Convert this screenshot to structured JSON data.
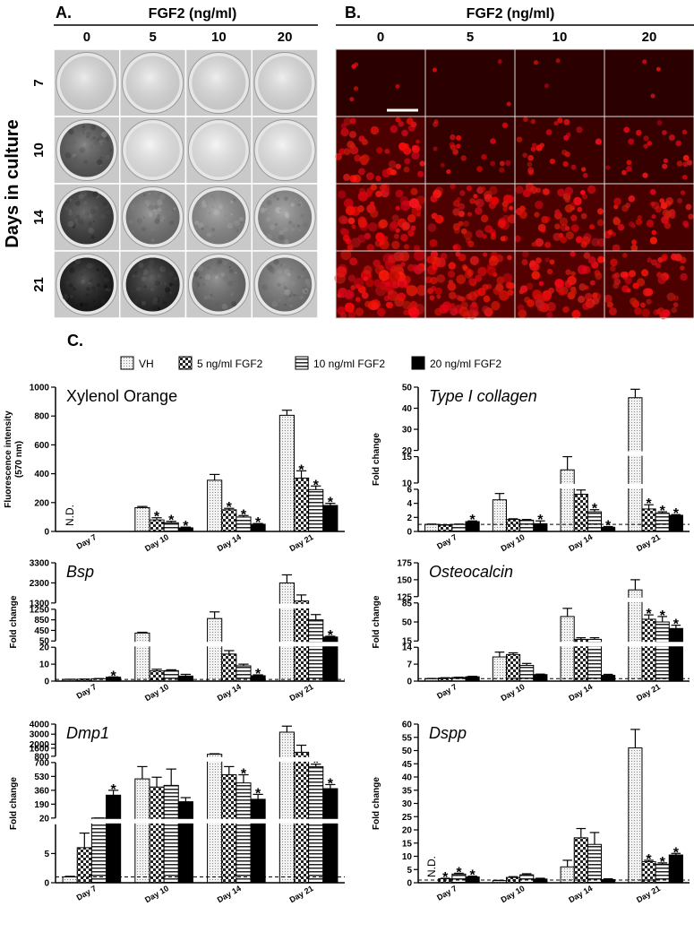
{
  "panel_a": {
    "label": "A.",
    "header": "FGF2 (ng/ml)",
    "columns": [
      "0",
      "5",
      "10",
      "20"
    ],
    "rows": [
      "7",
      "10",
      "14",
      "21"
    ],
    "row_title": "Days in culture"
  },
  "panel_b": {
    "label": "B.",
    "header": "FGF2 (ng/ml)",
    "columns": [
      "0",
      "5",
      "10",
      "20"
    ]
  },
  "panel_c": {
    "label": "C.",
    "legend": [
      {
        "name": "VH",
        "fill": "dots"
      },
      {
        "name": "5 ng/ml FGF2",
        "fill": "checker"
      },
      {
        "name": "10 ng/ml FGF2",
        "fill": "stripes"
      },
      {
        "name": "20 ng/ml FGF2",
        "fill": "solid"
      }
    ]
  },
  "chart_data": [
    {
      "type": "bar",
      "title": "Xylenol Orange",
      "ylabel": [
        "Fluorescence intensity",
        "(570 nm)"
      ],
      "categories": [
        "Day 7",
        "Day 10",
        "Day 14",
        "Day 21"
      ],
      "ylim": [
        0,
        1000
      ],
      "yticks": [
        0,
        200,
        400,
        600,
        800,
        1000
      ],
      "series": [
        {
          "values": [
            null,
            165,
            355,
            805
          ],
          "errors": [
            null,
            8,
            40,
            35
          ],
          "value_labels": [
            "N.D.",
            null,
            null,
            null
          ]
        },
        {
          "values": [
            null,
            80,
            150,
            370
          ],
          "errors": [
            null,
            15,
            10,
            50
          ],
          "significance": [
            null,
            "*",
            "*",
            "*"
          ]
        },
        {
          "values": [
            null,
            60,
            100,
            290
          ],
          "errors": [
            null,
            10,
            10,
            25
          ],
          "significance": [
            null,
            "*",
            "*",
            "*"
          ]
        },
        {
          "values": [
            null,
            25,
            50,
            180
          ],
          "errors": [
            null,
            5,
            5,
            15
          ],
          "significance": [
            null,
            "*",
            "*",
            "*"
          ]
        }
      ]
    },
    {
      "type": "bar",
      "title": "Type I collagen",
      "ylabel": "Fold change",
      "categories": [
        "Day 7",
        "Day 10",
        "Day 14",
        "Day 21"
      ],
      "reference_line": 1,
      "y_segments": [
        {
          "ylim": [
            0,
            6
          ],
          "yticks": [
            0,
            2,
            4,
            6
          ]
        },
        {
          "ylim": [
            10,
            15
          ],
          "yticks": [
            10,
            15
          ]
        },
        {
          "ylim": [
            20,
            50
          ],
          "yticks": [
            20,
            30,
            40,
            50
          ]
        }
      ],
      "series": [
        {
          "values": [
            1,
            4.5,
            12.5,
            45
          ],
          "errors": [
            0.05,
            0.9,
            2.5,
            4
          ]
        },
        {
          "values": [
            0.9,
            1.7,
            5.3,
            3.2
          ],
          "errors": [
            0.05,
            0.1,
            0.6,
            0.6
          ],
          "significance": [
            null,
            null,
            null,
            "*"
          ]
        },
        {
          "values": [
            1.0,
            1.6,
            2.8,
            2.6
          ],
          "errors": [
            0.05,
            0.1,
            0.3,
            0.2
          ],
          "significance": [
            null,
            null,
            "*",
            "*"
          ]
        },
        {
          "values": [
            1.4,
            1.1,
            0.6,
            2.3
          ],
          "errors": [
            0.1,
            0.4,
            0.1,
            0.1
          ],
          "significance": [
            "*",
            "*",
            "*",
            "*"
          ]
        }
      ]
    },
    {
      "type": "bar",
      "title": "Bsp",
      "ylabel": "Fold change",
      "categories": [
        "Day 7",
        "Day 10",
        "Day 14",
        "Day 21"
      ],
      "reference_line": 1,
      "y_segments": [
        {
          "ylim": [
            0,
            20
          ],
          "yticks": [
            0,
            10,
            20
          ]
        },
        {
          "ylim": [
            50,
            1250
          ],
          "yticks": [
            50,
            450,
            850,
            1250
          ]
        },
        {
          "ylim": [
            1300,
            3300
          ],
          "yticks": [
            1300,
            2300,
            3300
          ]
        }
      ],
      "series": [
        {
          "values": [
            1,
            350,
            900,
            2300
          ],
          "errors": [
            0.1,
            30,
            250,
            400
          ]
        },
        {
          "values": [
            1.1,
            6,
            16,
            1400
          ],
          "errors": [
            0.1,
            1,
            2,
            300
          ]
        },
        {
          "values": [
            1.4,
            6.2,
            9,
            850
          ],
          "errors": [
            0.1,
            0.5,
            1,
            200
          ]
        },
        {
          "values": [
            2.3,
            3,
            3.2,
            200
          ],
          "errors": [
            0.2,
            1,
            0.5,
            30
          ],
          "significance": [
            "*",
            null,
            "*",
            "*"
          ]
        }
      ]
    },
    {
      "type": "bar",
      "title": "Osteocalcin",
      "ylabel": "Fold change",
      "categories": [
        "Day 7",
        "Day 10",
        "Day 14",
        "Day 21"
      ],
      "reference_line": 1,
      "y_segments": [
        {
          "ylim": [
            0,
            14
          ],
          "yticks": [
            0,
            7,
            14
          ]
        },
        {
          "ylim": [
            15,
            85
          ],
          "yticks": [
            15,
            50,
            85
          ]
        },
        {
          "ylim": [
            125,
            175
          ],
          "yticks": [
            125,
            150,
            175
          ]
        }
      ],
      "series": [
        {
          "values": [
            1,
            10,
            60,
            135
          ],
          "errors": [
            0.1,
            2,
            15,
            15
          ]
        },
        {
          "values": [
            1.3,
            11,
            18,
            55
          ],
          "errors": [
            0.1,
            0.7,
            3,
            8
          ],
          "significance": [
            null,
            null,
            null,
            "*"
          ]
        },
        {
          "values": [
            1.5,
            6.5,
            18,
            50
          ],
          "errors": [
            0.1,
            0.8,
            3,
            10
          ],
          "significance": [
            null,
            null,
            null,
            "*"
          ]
        },
        {
          "values": [
            1.8,
            2.7,
            2.4,
            38
          ],
          "errors": [
            0.2,
            0.2,
            0.4,
            6
          ],
          "significance": [
            null,
            null,
            null,
            "*"
          ]
        }
      ]
    },
    {
      "type": "bar",
      "title": "Dmp1",
      "ylabel": "Fold change",
      "categories": [
        "Day 7",
        "Day 10",
        "Day 14",
        "Day 21"
      ],
      "reference_line": 1,
      "y_segments": [
        {
          "ylim": [
            0,
            10
          ],
          "yticks": [
            0,
            5
          ]
        },
        {
          "ylim": [
            20,
            700
          ],
          "yticks": [
            20,
            190,
            360,
            530,
            700
          ]
        },
        {
          "ylim": [
            800,
            4000
          ],
          "yticks": [
            800,
            1600,
            2000,
            3000,
            4000
          ]
        }
      ],
      "series": [
        {
          "values": [
            1,
            500,
            1000,
            3200
          ],
          "errors": [
            0.1,
            150,
            50,
            600
          ]
        },
        {
          "values": [
            6,
            400,
            550,
            1200
          ],
          "errors": [
            2.5,
            120,
            100,
            700
          ]
        },
        {
          "values": [
            20,
            420,
            450,
            650
          ],
          "errors": [
            0.5,
            200,
            100,
            30
          ],
          "significance": [
            null,
            null,
            "*",
            "*"
          ]
        },
        {
          "values": [
            300,
            220,
            250,
            380
          ],
          "errors": [
            60,
            50,
            60,
            50
          ],
          "significance": [
            "*",
            null,
            "*",
            "*"
          ]
        }
      ]
    },
    {
      "type": "bar",
      "title": "Dspp",
      "ylabel": "Fold change",
      "categories": [
        "Day 7",
        "Day 10",
        "Day 14",
        "Day 21"
      ],
      "reference_line": 1,
      "ylim": [
        0,
        60
      ],
      "yticks": [
        0,
        5,
        10,
        15,
        20,
        25,
        30,
        35,
        40,
        45,
        50,
        55,
        60
      ],
      "series": [
        {
          "values": [
            null,
            0.8,
            6,
            51
          ],
          "errors": [
            null,
            0.1,
            2.5,
            7
          ],
          "value_labels": [
            "N.D.",
            null,
            null,
            null
          ]
        },
        {
          "values": [
            1.5,
            2,
            17,
            8
          ],
          "errors": [
            0.2,
            0.3,
            3.5,
            0.5
          ],
          "significance": [
            "*",
            null,
            null,
            "*"
          ]
        },
        {
          "values": [
            3.3,
            3,
            14.5,
            7
          ],
          "errors": [
            0.3,
            0.4,
            4.5,
            0.5
          ],
          "significance": [
            "*",
            null,
            null,
            "*"
          ]
        },
        {
          "values": [
            2.2,
            1.4,
            1.2,
            10.5
          ],
          "errors": [
            0.3,
            0.3,
            0.3,
            0.6
          ],
          "significance": [
            "*",
            null,
            null,
            "*"
          ]
        }
      ]
    }
  ]
}
